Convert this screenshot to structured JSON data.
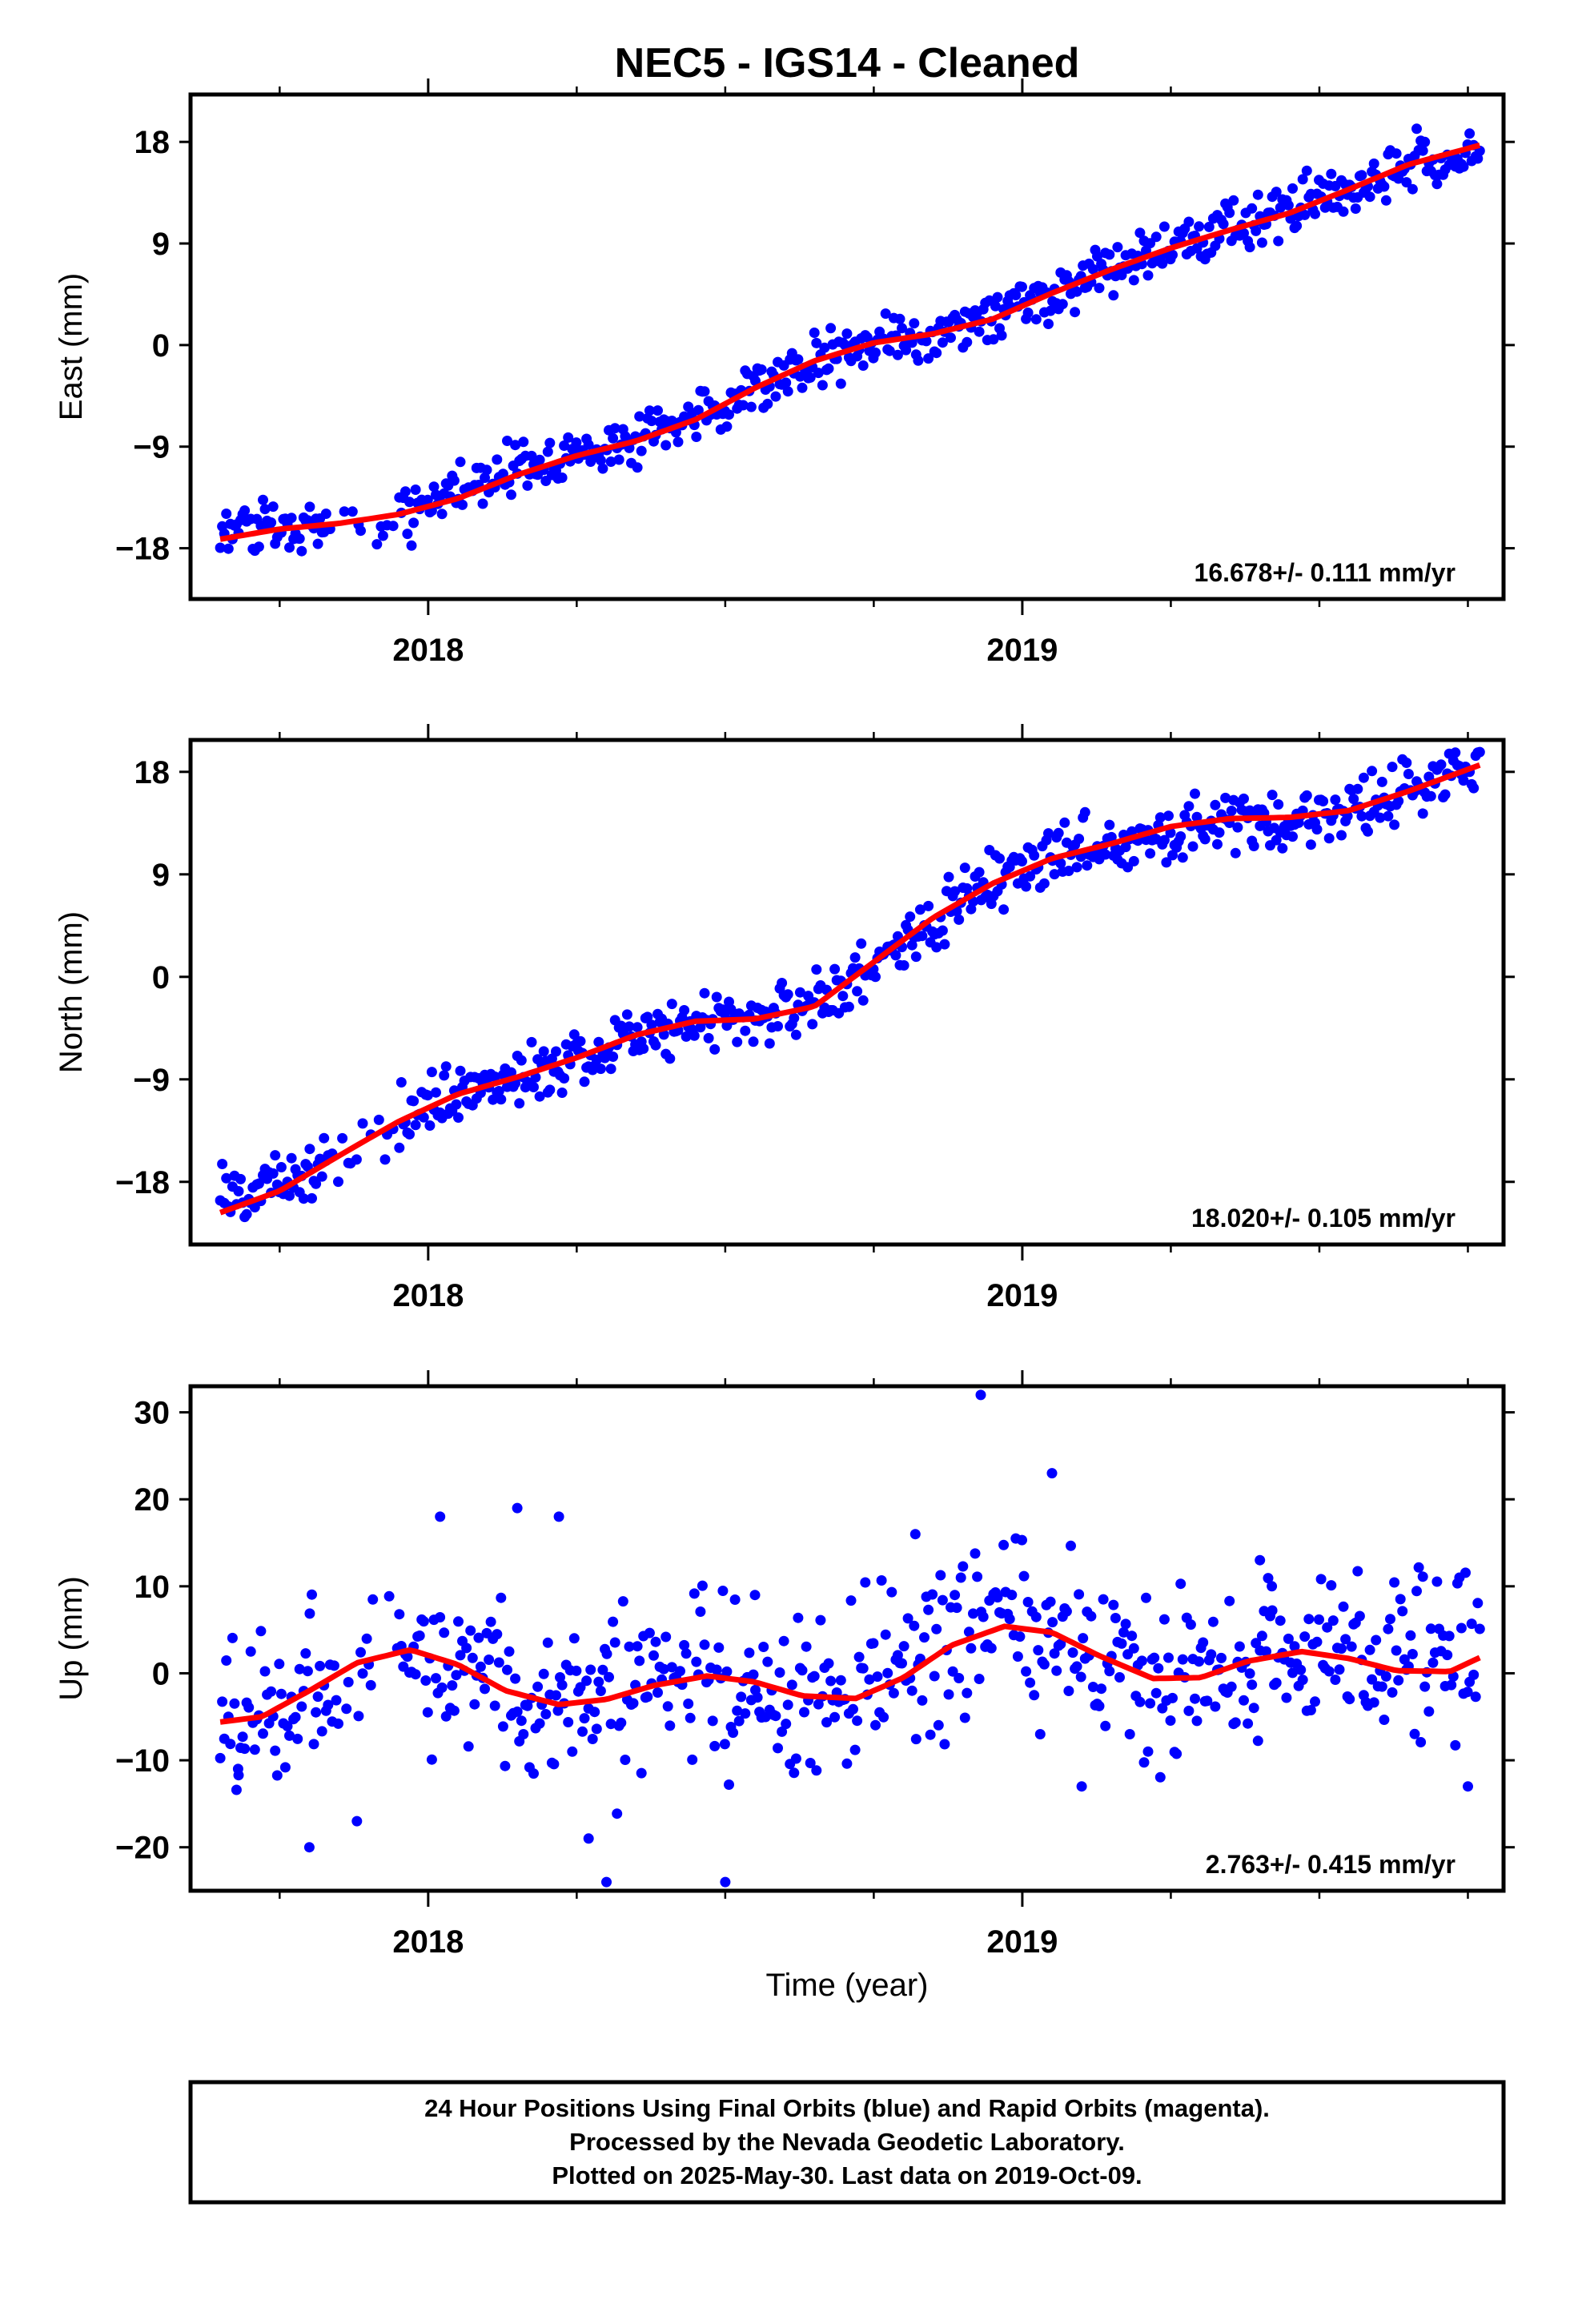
{
  "title": "NEC5  - IGS14 - Cleaned",
  "xlabel": "Time (year)",
  "footer_lines": [
    "24 Hour Positions Using Final Orbits (blue) and Rapid Orbits (magenta).",
    "Processed by the Nevada Geodetic Laboratory.",
    "Plotted on 2025-May-30. Last data on 2019-Oct-09."
  ],
  "colors": {
    "points": "#0000ff",
    "fit": "#ff0000",
    "frame": "#000000"
  },
  "chart_data": [
    {
      "type": "scatter",
      "panel": "east",
      "ylabel": "East (mm)",
      "xlim": [
        2017.6,
        2019.81
      ],
      "ylim": [
        -22.5,
        22.2
      ],
      "yticks": [
        -18,
        -9,
        0,
        9,
        18
      ],
      "xticks": [
        2018,
        2019
      ],
      "rate_text": "16.678+/- 0.111 mm/yr",
      "rate_value": 16.678,
      "rate_sigma": 0.111,
      "fit_x": [
        2017.65,
        2017.75,
        2017.85,
        2017.95,
        2018.05,
        2018.15,
        2018.25,
        2018.35,
        2018.45,
        2018.55,
        2018.65,
        2018.75,
        2018.85,
        2018.95,
        2019.05,
        2019.15,
        2019.25,
        2019.35,
        2019.45,
        2019.55,
        2019.65,
        2019.77
      ],
      "fit_y": [
        -17.2,
        -16.3,
        -15.8,
        -15.0,
        -13.6,
        -11.5,
        -9.8,
        -8.5,
        -6.6,
        -3.8,
        -1.4,
        0.2,
        1.0,
        2.3,
        4.6,
        6.7,
        8.6,
        10.2,
        11.7,
        13.8,
        16.0,
        17.7
      ],
      "points_x": [
        2017.65,
        2017.8,
        2017.9,
        2018.0,
        2018.1,
        2018.2,
        2018.3,
        2018.4,
        2018.5,
        2018.6,
        2018.7,
        2018.8,
        2018.9,
        2019.0,
        2019.1,
        2019.2,
        2019.3,
        2019.4,
        2019.5,
        2019.6,
        2019.7,
        2019.77
      ],
      "points_y": [
        -16.5,
        -15.9,
        -16.2,
        -13.9,
        -12.3,
        -10.4,
        -9.3,
        -7.5,
        -5.2,
        -2.6,
        -0.5,
        0.6,
        1.6,
        3.5,
        5.6,
        7.6,
        9.4,
        11.1,
        12.7,
        14.9,
        16.8,
        17.6
      ],
      "points_noise_mm": 1.5
    },
    {
      "type": "scatter",
      "panel": "north",
      "ylabel": "North (mm)",
      "xlim": [
        2017.6,
        2019.81
      ],
      "ylim": [
        -23.5,
        20.8
      ],
      "yticks": [
        -18,
        -9,
        0,
        9,
        18
      ],
      "xticks": [
        2018,
        2019
      ],
      "rate_text": "18.020+/- 0.105 mm/yr",
      "rate_value": 18.02,
      "rate_sigma": 0.105,
      "fit_x": [
        2017.65,
        2017.75,
        2017.85,
        2017.95,
        2018.05,
        2018.15,
        2018.25,
        2018.35,
        2018.45,
        2018.55,
        2018.65,
        2018.75,
        2018.85,
        2018.95,
        2019.05,
        2019.15,
        2019.25,
        2019.35,
        2019.45,
        2019.55,
        2019.65,
        2019.77
      ],
      "fit_y": [
        -20.7,
        -18.8,
        -15.7,
        -12.7,
        -10.3,
        -8.8,
        -7.1,
        -5.1,
        -3.9,
        -3.7,
        -2.6,
        1.3,
        5.2,
        8.2,
        10.4,
        11.7,
        13.2,
        13.9,
        14.0,
        14.6,
        16.3,
        18.6
      ],
      "points_x": [
        2017.65,
        2017.8,
        2017.9,
        2018.0,
        2018.1,
        2018.2,
        2018.3,
        2018.4,
        2018.5,
        2018.6,
        2018.7,
        2018.8,
        2018.9,
        2019.0,
        2019.1,
        2019.2,
        2019.3,
        2019.4,
        2019.5,
        2019.6,
        2019.7,
        2019.77
      ],
      "points_y": [
        -19.5,
        -17.2,
        -14.1,
        -11.3,
        -9.5,
        -8.1,
        -6.0,
        -4.4,
        -3.8,
        -3.1,
        -0.9,
        3.2,
        6.6,
        9.4,
        11.0,
        12.2,
        13.6,
        13.9,
        14.2,
        15.4,
        17.3,
        18.1
      ],
      "points_noise_mm": 1.6
    },
    {
      "type": "scatter",
      "panel": "up",
      "ylabel": "Up (mm)",
      "xlabel": "Time (year)",
      "xlim": [
        2017.6,
        2019.81
      ],
      "ylim": [
        -25,
        33
      ],
      "yticks": [
        -20,
        -10,
        0,
        10,
        20,
        30
      ],
      "xticks": [
        2018,
        2019
      ],
      "rate_text": "2.763+/- 0.415 mm/yr",
      "rate_value": 2.763,
      "rate_sigma": 0.415,
      "fit_x": [
        2017.65,
        2017.72,
        2017.8,
        2017.88,
        2017.97,
        2018.05,
        2018.13,
        2018.22,
        2018.3,
        2018.38,
        2018.47,
        2018.55,
        2018.63,
        2018.72,
        2018.8,
        2018.88,
        2018.97,
        2019.05,
        2019.13,
        2019.22,
        2019.3,
        2019.38,
        2019.47,
        2019.55,
        2019.63,
        2019.72,
        2019.77
      ],
      "fit_y": [
        -5.6,
        -5.0,
        -2.0,
        1.2,
        2.7,
        1.0,
        -2.0,
        -3.6,
        -3.0,
        -1.4,
        -0.3,
        -1.0,
        -2.6,
        -2.9,
        -0.5,
        3.2,
        5.4,
        4.7,
        2.0,
        -0.6,
        -0.5,
        1.4,
        2.5,
        1.7,
        0.3,
        0.2,
        1.8
      ],
      "points_x": [
        2017.65,
        2017.75,
        2017.85,
        2017.95,
        2018.05,
        2018.15,
        2018.25,
        2018.35,
        2018.45,
        2018.55,
        2018.65,
        2018.75,
        2018.85,
        2018.95,
        2019.05,
        2019.15,
        2019.25,
        2019.35,
        2019.45,
        2019.55,
        2019.65,
        2019.77
      ],
      "points_y": [
        -5.0,
        -4.0,
        -0.8,
        2.6,
        1.6,
        -1.6,
        -3.6,
        -2.0,
        -0.4,
        -1.5,
        -2.9,
        -1.0,
        3.0,
        5.3,
        4.2,
        1.0,
        -0.6,
        0.8,
        2.4,
        1.5,
        0.3,
        1.6
      ],
      "points_noise_mm": 6.0,
      "outliers_x": [
        2017.68,
        2017.8,
        2017.88,
        2018.02,
        2018.15,
        2018.22,
        2018.27,
        2018.3,
        2018.5,
        2018.55,
        2018.82,
        2018.93,
        2019.05,
        2019.1,
        2019.4,
        2019.42,
        2019.75
      ],
      "outliers_y": [
        -11,
        -20,
        -17,
        18,
        19,
        18,
        -19,
        -24,
        -24,
        9,
        16,
        32,
        23,
        -13,
        13,
        10,
        -13
      ]
    }
  ]
}
